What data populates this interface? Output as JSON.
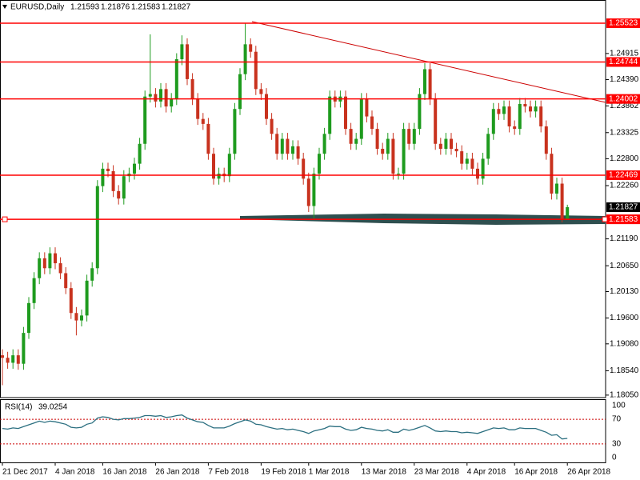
{
  "chart_data": [
    {
      "type": "candlestick",
      "symbol": "EURUSD,Daily",
      "categories": [
        "21 Dec 2017",
        null,
        null,
        null,
        null,
        null,
        null,
        null,
        null,
        null,
        "4 Jan 2018",
        null,
        null,
        null,
        null,
        null,
        null,
        null,
        null,
        "16 Jan 2018",
        null,
        null,
        null,
        null,
        null,
        null,
        null,
        null,
        null,
        "26 Jan 2018",
        null,
        null,
        null,
        null,
        null,
        null,
        null,
        null,
        null,
        "7 Feb 2018",
        null,
        null,
        null,
        null,
        null,
        null,
        null,
        null,
        null,
        "19 Feb 2018",
        null,
        null,
        null,
        null,
        null,
        null,
        null,
        null,
        "1 Mar 2018",
        null,
        null,
        null,
        null,
        null,
        null,
        null,
        null,
        null,
        "13 Mar 2018",
        null,
        null,
        null,
        null,
        null,
        null,
        null,
        null,
        null,
        "23 Mar 2018",
        null,
        null,
        null,
        null,
        null,
        null,
        null,
        null,
        null,
        "4 Apr 2018",
        null,
        null,
        null,
        null,
        null,
        null,
        null,
        null,
        "16 Apr 2018",
        null,
        null,
        null,
        null,
        null,
        null,
        null,
        null,
        null,
        "26 Apr 2018"
      ],
      "open": [
        1.1885,
        1.188,
        1.187,
        1.1885,
        1.1868,
        1.193,
        1.199,
        1.204,
        1.208,
        1.206,
        1.209,
        1.207,
        1.205,
        1.202,
        1.197,
        1.1955,
        1.1965,
        1.2035,
        1.206,
        1.2225,
        1.226,
        1.2255,
        1.2215,
        1.22,
        1.2245,
        1.225,
        1.227,
        1.231,
        1.2405,
        1.241,
        1.2395,
        1.242,
        1.2385,
        1.24,
        1.248,
        1.251,
        1.244,
        1.24,
        1.236,
        1.235,
        1.229,
        1.224,
        1.225,
        1.2245,
        1.229,
        1.238,
        1.245,
        1.251,
        1.2495,
        1.242,
        1.241,
        1.236,
        1.233,
        1.229,
        1.232,
        1.229,
        1.2305,
        1.228,
        1.224,
        1.2185,
        1.225,
        1.229,
        1.233,
        1.2405,
        1.2395,
        1.2405,
        1.234,
        1.231,
        1.232,
        1.24,
        1.2365,
        1.234,
        1.23,
        1.229,
        1.232,
        1.225,
        1.225,
        1.234,
        1.231,
        1.234,
        1.241,
        1.246,
        1.24,
        1.231,
        1.23,
        1.232,
        1.23,
        1.2295,
        1.227,
        1.228,
        1.226,
        1.224,
        1.228,
        1.233,
        1.238,
        1.237,
        1.2385,
        1.2345,
        1.234,
        1.239,
        1.2385,
        1.2375,
        1.2385,
        1.2345,
        1.229,
        1.221,
        1.223,
        1.21593
      ],
      "high": [
        1.1897,
        1.1892,
        1.1897,
        1.1897,
        1.1942,
        1.2002,
        1.2052,
        1.2092,
        1.2092,
        1.2102,
        1.2102,
        1.2082,
        1.2062,
        1.2032,
        1.1982,
        1.1977,
        1.2047,
        1.2072,
        1.2237,
        1.2272,
        1.2272,
        1.2267,
        1.2227,
        1.2257,
        1.2262,
        1.2282,
        1.2322,
        1.2417,
        1.253,
        1.2422,
        1.2432,
        1.2432,
        1.2412,
        1.2492,
        1.2528,
        1.2522,
        1.2452,
        1.2412,
        1.2372,
        1.2362,
        1.2302,
        1.2262,
        1.2262,
        1.2302,
        1.2392,
        1.2462,
        1.25523,
        1.2522,
        1.2507,
        1.2432,
        1.2422,
        1.2372,
        1.2342,
        1.2332,
        1.2332,
        1.2317,
        1.2317,
        1.2292,
        1.2252,
        1.2262,
        1.2302,
        1.2342,
        1.2417,
        1.2417,
        1.2417,
        1.2417,
        1.2352,
        1.2332,
        1.2412,
        1.2412,
        1.2377,
        1.2352,
        1.2312,
        1.2332,
        1.2332,
        1.2262,
        1.2352,
        1.2352,
        1.2352,
        1.2422,
        1.2472,
        1.2472,
        1.2412,
        1.2322,
        1.2332,
        1.2332,
        1.2312,
        1.2307,
        1.2292,
        1.2292,
        1.2272,
        1.2292,
        1.2342,
        1.2392,
        1.2392,
        1.2397,
        1.2397,
        1.2357,
        1.2402,
        1.2402,
        1.2397,
        1.2397,
        1.2397,
        1.2357,
        1.2302,
        1.2242,
        1.2242,
        1.21876
      ],
      "low": [
        1.1825,
        1.1858,
        1.1858,
        1.1856,
        1.1856,
        1.1918,
        1.1978,
        1.2028,
        1.2048,
        1.2048,
        1.2058,
        1.2038,
        1.2008,
        1.1958,
        1.1925,
        1.1943,
        1.1953,
        1.2023,
        1.2048,
        1.2213,
        1.2243,
        1.2203,
        1.2188,
        1.2188,
        1.2233,
        1.2238,
        1.2258,
        1.2298,
        1.2393,
        1.2383,
        1.2383,
        1.2373,
        1.2373,
        1.2388,
        1.2468,
        1.2428,
        1.2388,
        1.2348,
        1.2338,
        1.2278,
        1.2228,
        1.2228,
        1.2233,
        1.2233,
        1.2278,
        1.2368,
        1.2438,
        1.2483,
        1.2408,
        1.2398,
        1.2348,
        1.2318,
        1.2278,
        1.2278,
        1.2278,
        1.2278,
        1.2268,
        1.2228,
        1.2173,
        1.216,
        1.2238,
        1.2278,
        1.2318,
        1.2383,
        1.2383,
        1.2328,
        1.2298,
        1.2298,
        1.2308,
        1.2353,
        1.2328,
        1.2288,
        1.2278,
        1.2278,
        1.2238,
        1.2238,
        1.2238,
        1.2298,
        1.2298,
        1.2328,
        1.2398,
        1.2388,
        1.2298,
        1.2288,
        1.2288,
        1.2288,
        1.2283,
        1.2258,
        1.2258,
        1.2248,
        1.2228,
        1.2228,
        1.2268,
        1.2318,
        1.2358,
        1.2358,
        1.2333,
        1.2328,
        1.2328,
        1.2373,
        1.2363,
        1.2363,
        1.2333,
        1.2278,
        1.2198,
        1.2198,
        1.2152,
        1.21583
      ],
      "close": [
        1.188,
        1.187,
        1.1885,
        1.1868,
        1.193,
        1.199,
        1.204,
        1.208,
        1.206,
        1.209,
        1.207,
        1.205,
        1.202,
        1.197,
        1.1955,
        1.1965,
        1.2035,
        1.206,
        1.2225,
        1.226,
        1.2255,
        1.2215,
        1.22,
        1.2245,
        1.225,
        1.227,
        1.231,
        1.2405,
        1.241,
        1.2395,
        1.242,
        1.2385,
        1.24,
        1.248,
        1.251,
        1.244,
        1.24,
        1.236,
        1.235,
        1.229,
        1.224,
        1.225,
        1.2245,
        1.229,
        1.238,
        1.245,
        1.251,
        1.2495,
        1.242,
        1.241,
        1.236,
        1.233,
        1.229,
        1.232,
        1.229,
        1.2305,
        1.228,
        1.224,
        1.2185,
        1.225,
        1.229,
        1.233,
        1.2405,
        1.2395,
        1.2405,
        1.234,
        1.231,
        1.232,
        1.24,
        1.2365,
        1.234,
        1.23,
        1.229,
        1.232,
        1.225,
        1.225,
        1.234,
        1.231,
        1.234,
        1.241,
        1.246,
        1.24,
        1.231,
        1.23,
        1.232,
        1.23,
        1.2295,
        1.227,
        1.228,
        1.226,
        1.224,
        1.228,
        1.233,
        1.238,
        1.237,
        1.2385,
        1.2345,
        1.234,
        1.239,
        1.2385,
        1.2375,
        1.2385,
        1.2345,
        1.229,
        1.221,
        1.223,
        1.21593,
        1.21827
      ],
      "up_color": "#1e9b1e",
      "down_color": "#c8321e",
      "ylim": [
        1.18,
        1.2599
      ],
      "yticks": [
        1.24915,
        {
          "value": 1.2439,
          "label": "1.24390"
        },
        1.23862,
        1.23325,
        {
          "value": 1.228,
          "label": "1.22800"
        },
        {
          "value": 1.2226,
          "label": "1.22260"
        },
        {
          "value": 1.2119,
          "label": "1.21190"
        },
        {
          "value": 1.2065,
          "label": "1.20650"
        },
        {
          "value": 1.2013,
          "label": "1.20130"
        },
        {
          "value": 1.196,
          "label": "1.19600"
        },
        {
          "value": 1.1908,
          "label": "1.19080"
        },
        {
          "value": 1.1854,
          "label": "1.18540"
        },
        {
          "value": 1.1805,
          "label": "1.18050"
        }
      ],
      "levels": [
        1.25523,
        1.24744,
        1.24002,
        1.22469,
        1.21583
      ],
      "level_color": "#ff0000"
    },
    {
      "type": "line",
      "name": "RSI(14)",
      "color": "#2b6f80",
      "level_color": "#cc0000",
      "values": [
        55,
        54,
        56,
        55,
        58,
        61,
        64,
        67,
        65,
        67,
        66,
        64,
        62,
        57,
        56,
        57,
        62,
        64,
        72,
        74,
        73,
        70,
        69,
        71,
        71,
        72,
        73,
        76,
        76,
        75,
        76,
        73,
        74,
        76,
        77,
        72,
        69,
        66,
        65,
        60,
        56,
        56,
        56,
        59,
        63,
        66,
        69,
        67,
        62,
        61,
        58,
        56,
        54,
        55,
        53,
        54,
        52,
        50,
        47,
        51,
        53,
        55,
        59,
        58,
        58,
        54,
        52,
        53,
        57,
        55,
        54,
        52,
        51,
        53,
        49,
        49,
        54,
        52,
        54,
        57,
        60,
        56,
        51,
        50,
        51,
        50,
        50,
        48,
        49,
        48,
        47,
        50,
        53,
        56,
        55,
        56,
        53,
        53,
        56,
        55,
        55,
        55,
        52,
        49,
        44,
        45,
        38,
        39.0254
      ],
      "ylim": [
        0,
        100
      ],
      "yticks": [
        100,
        70,
        30,
        0
      ]
    }
  ]
}
